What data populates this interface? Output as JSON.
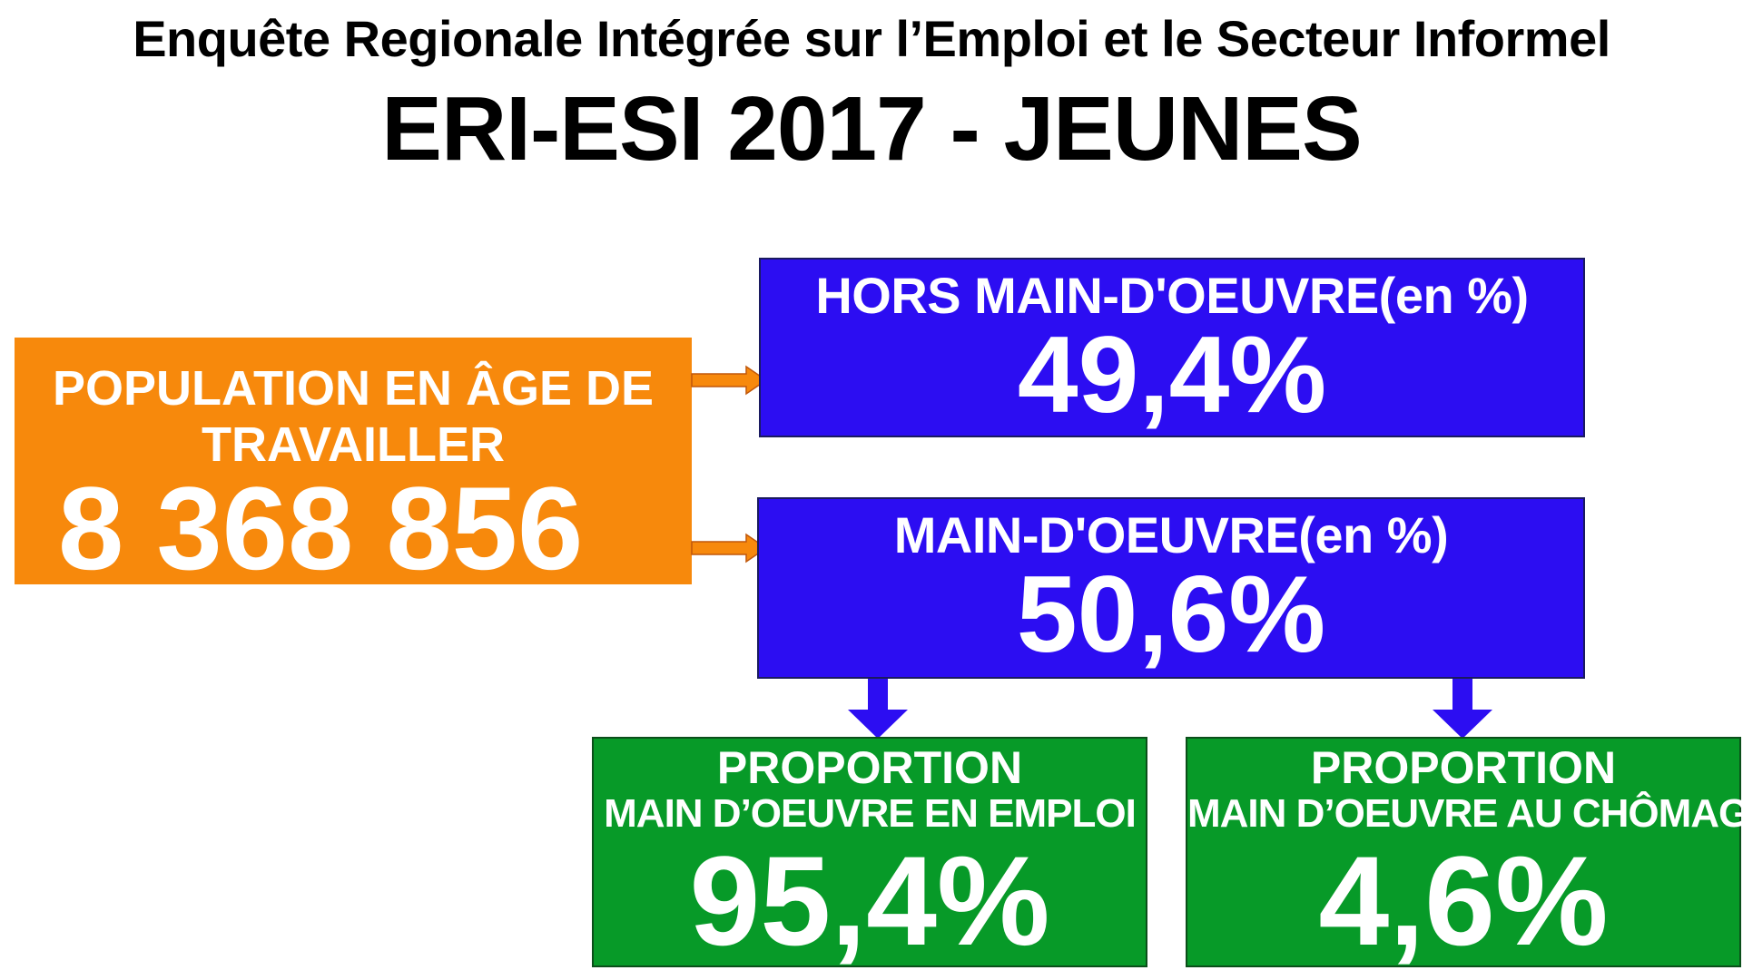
{
  "header": {
    "subtitle": "Enquête Regionale Intégrée sur l’Emploi et le Secteur Informel",
    "title": "ERI-ESI 2017 - JEUNES"
  },
  "population": {
    "label_line1": "POPULATION EN ÂGE DE",
    "label_line2": "TRAVAILLER",
    "value": "8 368 856"
  },
  "hors_main_doeuvre": {
    "label": "HORS MAIN-D'OEUVRE(en %)",
    "value": "49,4%"
  },
  "main_doeuvre": {
    "label": "MAIN-D'OEUVRE(en %)",
    "value": "50,6%"
  },
  "emploi": {
    "label_line1": "PROPORTION",
    "label_line2": "MAIN D’OEUVRE EN EMPLOI",
    "value": "95,4%"
  },
  "chomage": {
    "label_line1": "PROPORTION",
    "label_line2": "MAIN D’OEUVRE AU CHÔMAGE",
    "value": "4,6%"
  },
  "colors": {
    "orange": "#f7890c",
    "blue": "#2c0df2",
    "green": "#079a28",
    "text": "#ffffff"
  },
  "icons": {
    "right_arrow": "right-arrow-icon",
    "down_arrow": "down-arrow-icon"
  }
}
